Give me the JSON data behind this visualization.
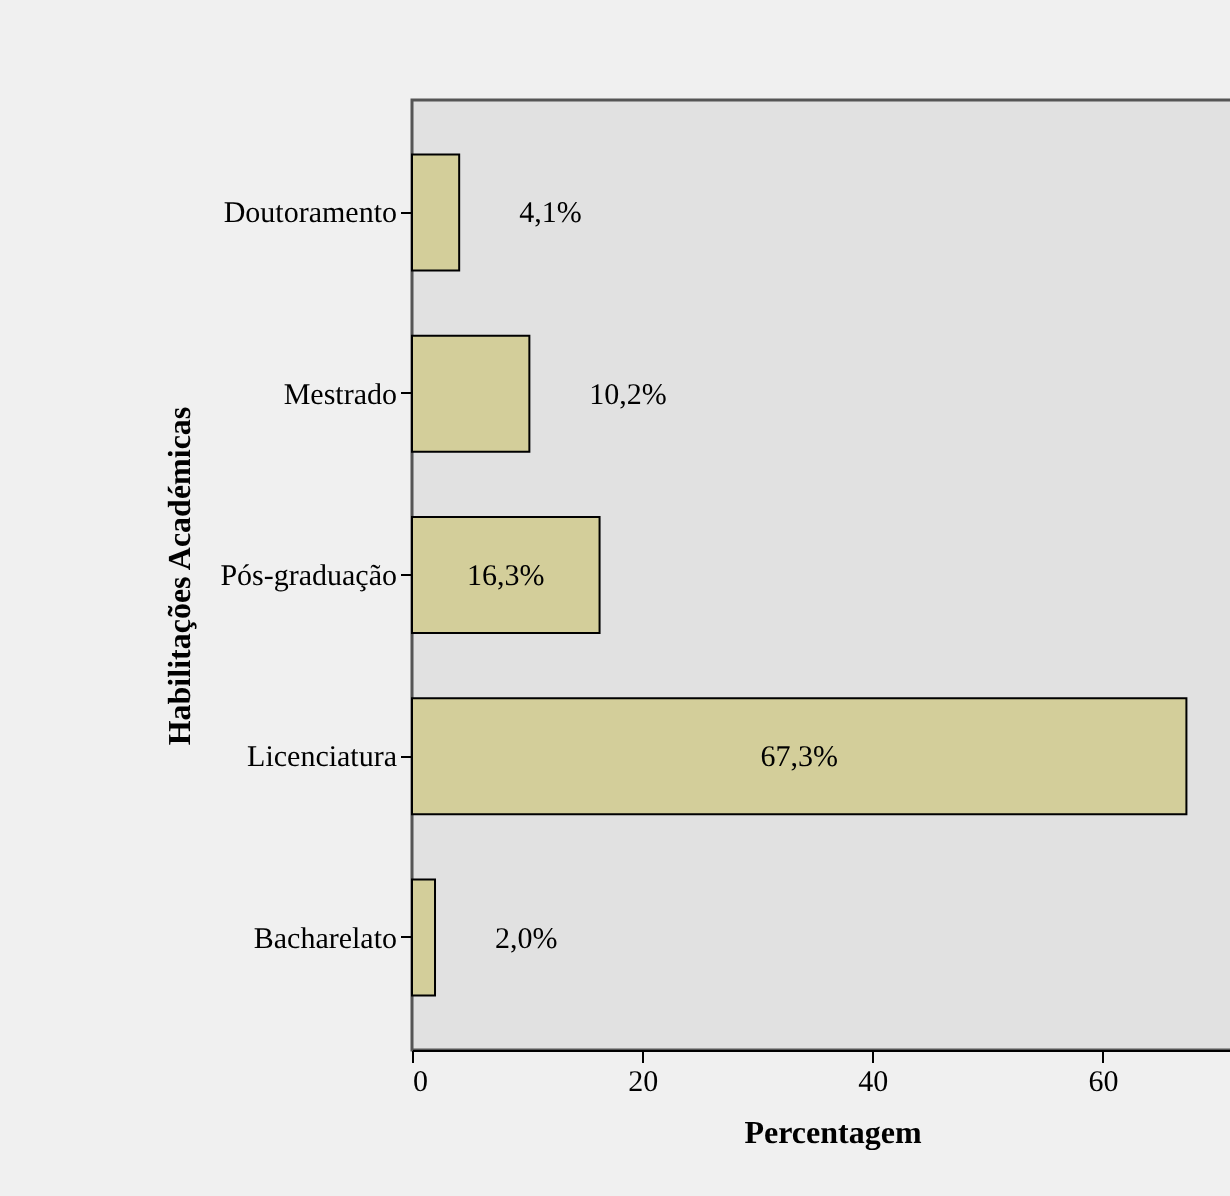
{
  "chart_data": {
    "type": "bar",
    "orientation": "horizontal",
    "xlabel": "Percentagem",
    "ylabel": "Habilitações Académicas",
    "categories": [
      "Doutoramento",
      "Mestrado",
      "Pós-graduação",
      "Licenciatura",
      "Bacharelato"
    ],
    "values": [
      4.1,
      10.2,
      16.3,
      67.3,
      2.0
    ],
    "value_labels": [
      "4,1%",
      "10,2%",
      "16,3%",
      "67,3%",
      "2,0%"
    ],
    "color": "#d3ce9a",
    "xlim": [
      0,
      73
    ],
    "xticks": [
      0,
      20,
      40,
      60
    ],
    "grid": false
  }
}
